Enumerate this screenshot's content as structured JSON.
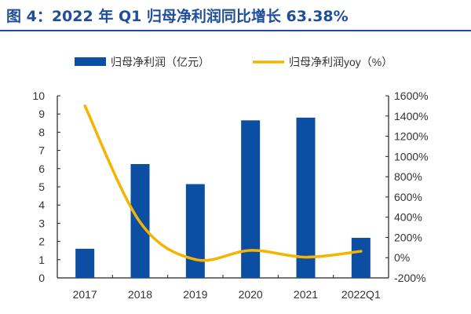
{
  "chart_data": {
    "type": "bar+line",
    "title": "图 4：2022 年 Q1 归母净利润同比增长 63.38%",
    "categories": [
      "2017",
      "2018",
      "2019",
      "2020",
      "2021",
      "2022Q1"
    ],
    "series": [
      {
        "name": "归母净利润（亿元）",
        "type": "bar",
        "axis": "left",
        "color": "#0b4ea2",
        "values": [
          1.6,
          6.25,
          5.15,
          8.65,
          8.8,
          2.2
        ]
      },
      {
        "name": "归母净利润yoy（%）",
        "type": "line",
        "axis": "right",
        "color": "#f5b400",
        "values": [
          1500,
          350,
          -18,
          72,
          5,
          63.38
        ]
      }
    ],
    "left_axis": {
      "ylim": [
        0,
        10
      ],
      "ticks": [
        "0",
        "1",
        "2",
        "3",
        "4",
        "5",
        "6",
        "7",
        "8",
        "9",
        "10"
      ]
    },
    "right_axis": {
      "ylim": [
        -200,
        1600
      ],
      "ticks": [
        "-200%",
        "0%",
        "200%",
        "400%",
        "600%",
        "800%",
        "1000%",
        "1200%",
        "1400%",
        "1600%"
      ]
    },
    "legend": "top",
    "grid": false
  }
}
